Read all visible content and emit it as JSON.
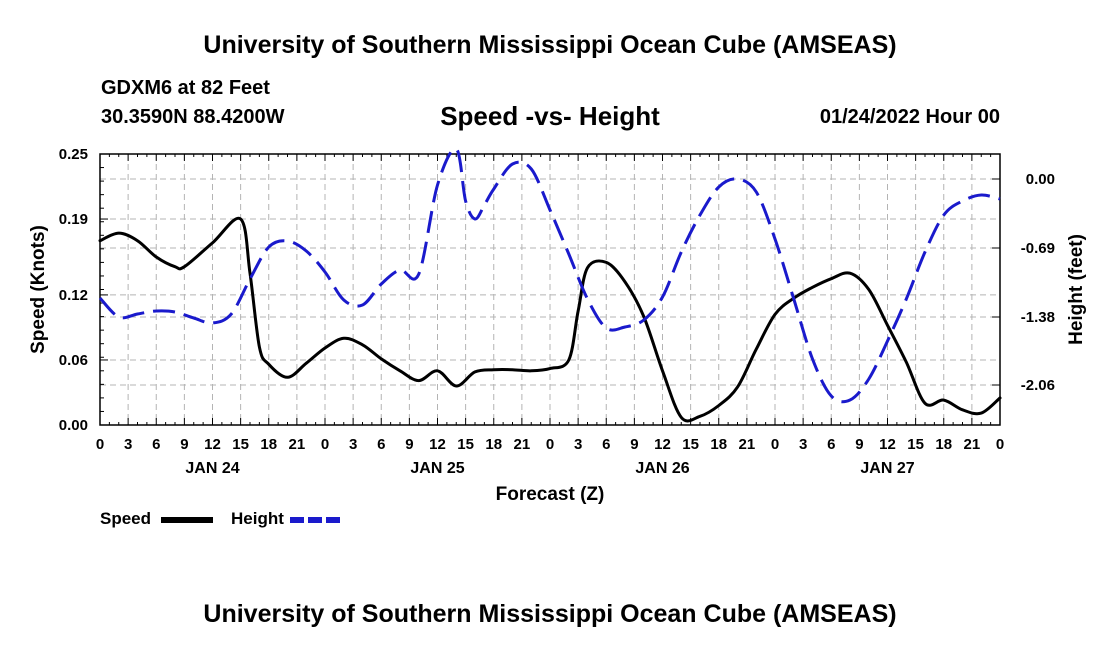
{
  "header": {
    "title": "University of Southern Mississippi Ocean Cube (AMSEAS)",
    "station": "GDXM6 at 82 Feet",
    "coords": "30.3590N  88.4200W",
    "date": "01/24/2022 Hour 00"
  },
  "footer": {
    "title": "University of Southern Mississippi Ocean Cube (AMSEAS)"
  },
  "legend": {
    "speed": "Speed",
    "height": "Height"
  },
  "chart_data": {
    "type": "line",
    "title": "Speed -vs- Height",
    "xlabel": "Forecast (Z)",
    "ylabel": "Speed (Knots)",
    "y2label": "Height (feet)",
    "x_unit": "hours since 01/24/2022 00Z",
    "xlim": [
      0,
      96
    ],
    "ylim": [
      0,
      0.25
    ],
    "y2lim": [
      -2.46,
      0.25
    ],
    "x_tick_values": [
      0,
      3,
      6,
      9,
      12,
      15,
      18,
      21,
      24,
      27,
      30,
      33,
      36,
      39,
      42,
      45,
      48,
      51,
      54,
      57,
      60,
      63,
      66,
      69,
      72,
      75,
      78,
      81,
      84,
      87,
      90,
      93,
      96
    ],
    "x_tick_labels": [
      "0",
      "3",
      "6",
      "9",
      "12",
      "15",
      "18",
      "21",
      "0",
      "3",
      "6",
      "9",
      "12",
      "15",
      "18",
      "21",
      "0",
      "3",
      "6",
      "9",
      "12",
      "15",
      "18",
      "21",
      "0",
      "3",
      "6",
      "9",
      "12",
      "15",
      "18",
      "21",
      "0"
    ],
    "day_labels": [
      {
        "x": 12,
        "label": "JAN 24"
      },
      {
        "x": 36,
        "label": "JAN 25"
      },
      {
        "x": 60,
        "label": "JAN 26"
      },
      {
        "x": 84,
        "label": "JAN 27"
      }
    ],
    "y_ticks": [
      0.0,
      0.06,
      0.12,
      0.19,
      0.25
    ],
    "y_tick_labels": [
      "0.00",
      "0.06",
      "0.12",
      "0.19",
      "0.25"
    ],
    "y2_ticks": [
      0.0,
      -0.69,
      -1.38,
      -2.06
    ],
    "y2_tick_labels": [
      "0.00",
      "-0.69",
      "-1.38",
      "-2.06"
    ],
    "grid": true,
    "legend_position": "bottom-left",
    "colors": {
      "speed": "#000000",
      "height": "#1a1acc"
    },
    "series": [
      {
        "name": "Speed",
        "axis": "left",
        "style": "solid",
        "x": [
          0,
          2,
          4,
          6,
          8,
          9,
          12,
          15,
          16,
          17,
          18,
          20,
          22,
          24,
          26,
          28,
          30,
          32,
          34,
          36,
          38,
          40,
          42,
          44,
          46,
          48,
          50,
          51,
          52,
          54,
          56,
          58,
          60,
          62,
          64,
          66,
          68,
          70,
          72,
          74,
          76,
          78,
          80,
          82,
          84,
          86,
          88,
          90,
          92,
          94,
          96
        ],
        "y": [
          0.17,
          0.177,
          0.17,
          0.155,
          0.146,
          0.146,
          0.168,
          0.19,
          0.14,
          0.072,
          0.056,
          0.044,
          0.057,
          0.071,
          0.08,
          0.074,
          0.061,
          0.05,
          0.041,
          0.05,
          0.036,
          0.049,
          0.051,
          0.051,
          0.05,
          0.052,
          0.06,
          0.105,
          0.145,
          0.15,
          0.132,
          0.1,
          0.05,
          0.007,
          0.008,
          0.018,
          0.035,
          0.07,
          0.102,
          0.117,
          0.127,
          0.135,
          0.14,
          0.125,
          0.092,
          0.058,
          0.02,
          0.023,
          0.014,
          0.011,
          0.025
        ]
      },
      {
        "name": "Height",
        "axis": "right",
        "style": "dashed",
        "x": [
          0,
          2,
          4,
          6,
          8,
          10,
          12,
          14,
          16,
          18,
          20,
          22,
          24,
          26,
          28,
          30,
          32,
          34,
          36,
          38,
          39,
          40,
          41,
          42,
          44,
          46,
          48,
          50,
          52,
          54,
          56,
          58,
          60,
          62,
          64,
          66,
          68,
          70,
          72,
          74,
          76,
          78,
          80,
          82,
          84,
          86,
          88,
          90,
          92,
          94,
          96
        ],
        "y": [
          -1.19,
          -1.38,
          -1.35,
          -1.32,
          -1.33,
          -1.39,
          -1.44,
          -1.35,
          -1.0,
          -0.68,
          -0.62,
          -0.72,
          -0.93,
          -1.21,
          -1.26,
          -1.05,
          -0.91,
          -0.95,
          -0.06,
          0.3,
          -0.22,
          -0.4,
          -0.26,
          -0.1,
          0.15,
          0.1,
          -0.31,
          -0.75,
          -1.2,
          -1.49,
          -1.48,
          -1.41,
          -1.18,
          -0.73,
          -0.36,
          -0.08,
          0.0,
          -0.13,
          -0.6,
          -1.2,
          -1.8,
          -2.17,
          -2.21,
          -2.0,
          -1.62,
          -1.2,
          -0.73,
          -0.36,
          -0.22,
          -0.16,
          -0.2
        ]
      }
    ]
  }
}
